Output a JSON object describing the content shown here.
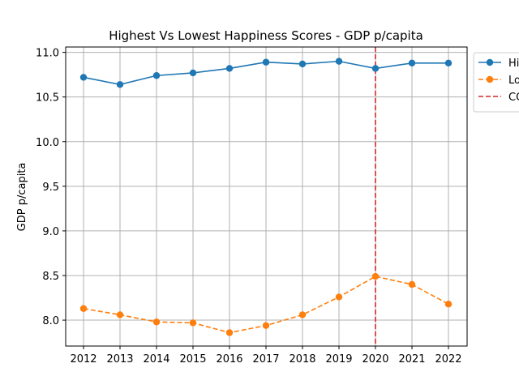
{
  "chart_data": {
    "type": "line",
    "title": "Highest Vs Lowest Happiness Scores - GDP p/capita",
    "xlabel": "",
    "ylabel": "GDP p/capita",
    "categories": [
      "2012",
      "2013",
      "2014",
      "2015",
      "2016",
      "2017",
      "2018",
      "2019",
      "2020",
      "2021",
      "2022"
    ],
    "ylim": [
      7.71,
      11.06
    ],
    "yticks": [
      "8.0",
      "8.5",
      "9.0",
      "9.5",
      "10.0",
      "10.5",
      "11.0"
    ],
    "grid": true,
    "legend_position": "top-right",
    "series": [
      {
        "name": "Hi",
        "color": "#1f77b4",
        "style": "solid",
        "values": [
          10.72,
          10.64,
          10.74,
          10.77,
          10.82,
          10.89,
          10.87,
          10.9,
          10.82,
          10.88,
          10.88
        ]
      },
      {
        "name": "Lo",
        "color": "#ff7f0e",
        "style": "dashed",
        "values": [
          8.13,
          8.06,
          7.98,
          7.97,
          7.86,
          7.94,
          8.06,
          8.26,
          8.49,
          8.4,
          8.18
        ]
      }
    ],
    "annotations": [
      {
        "type": "vline",
        "x": "2020",
        "color": "#d62728",
        "style": "dashed",
        "label": "CO"
      }
    ]
  }
}
